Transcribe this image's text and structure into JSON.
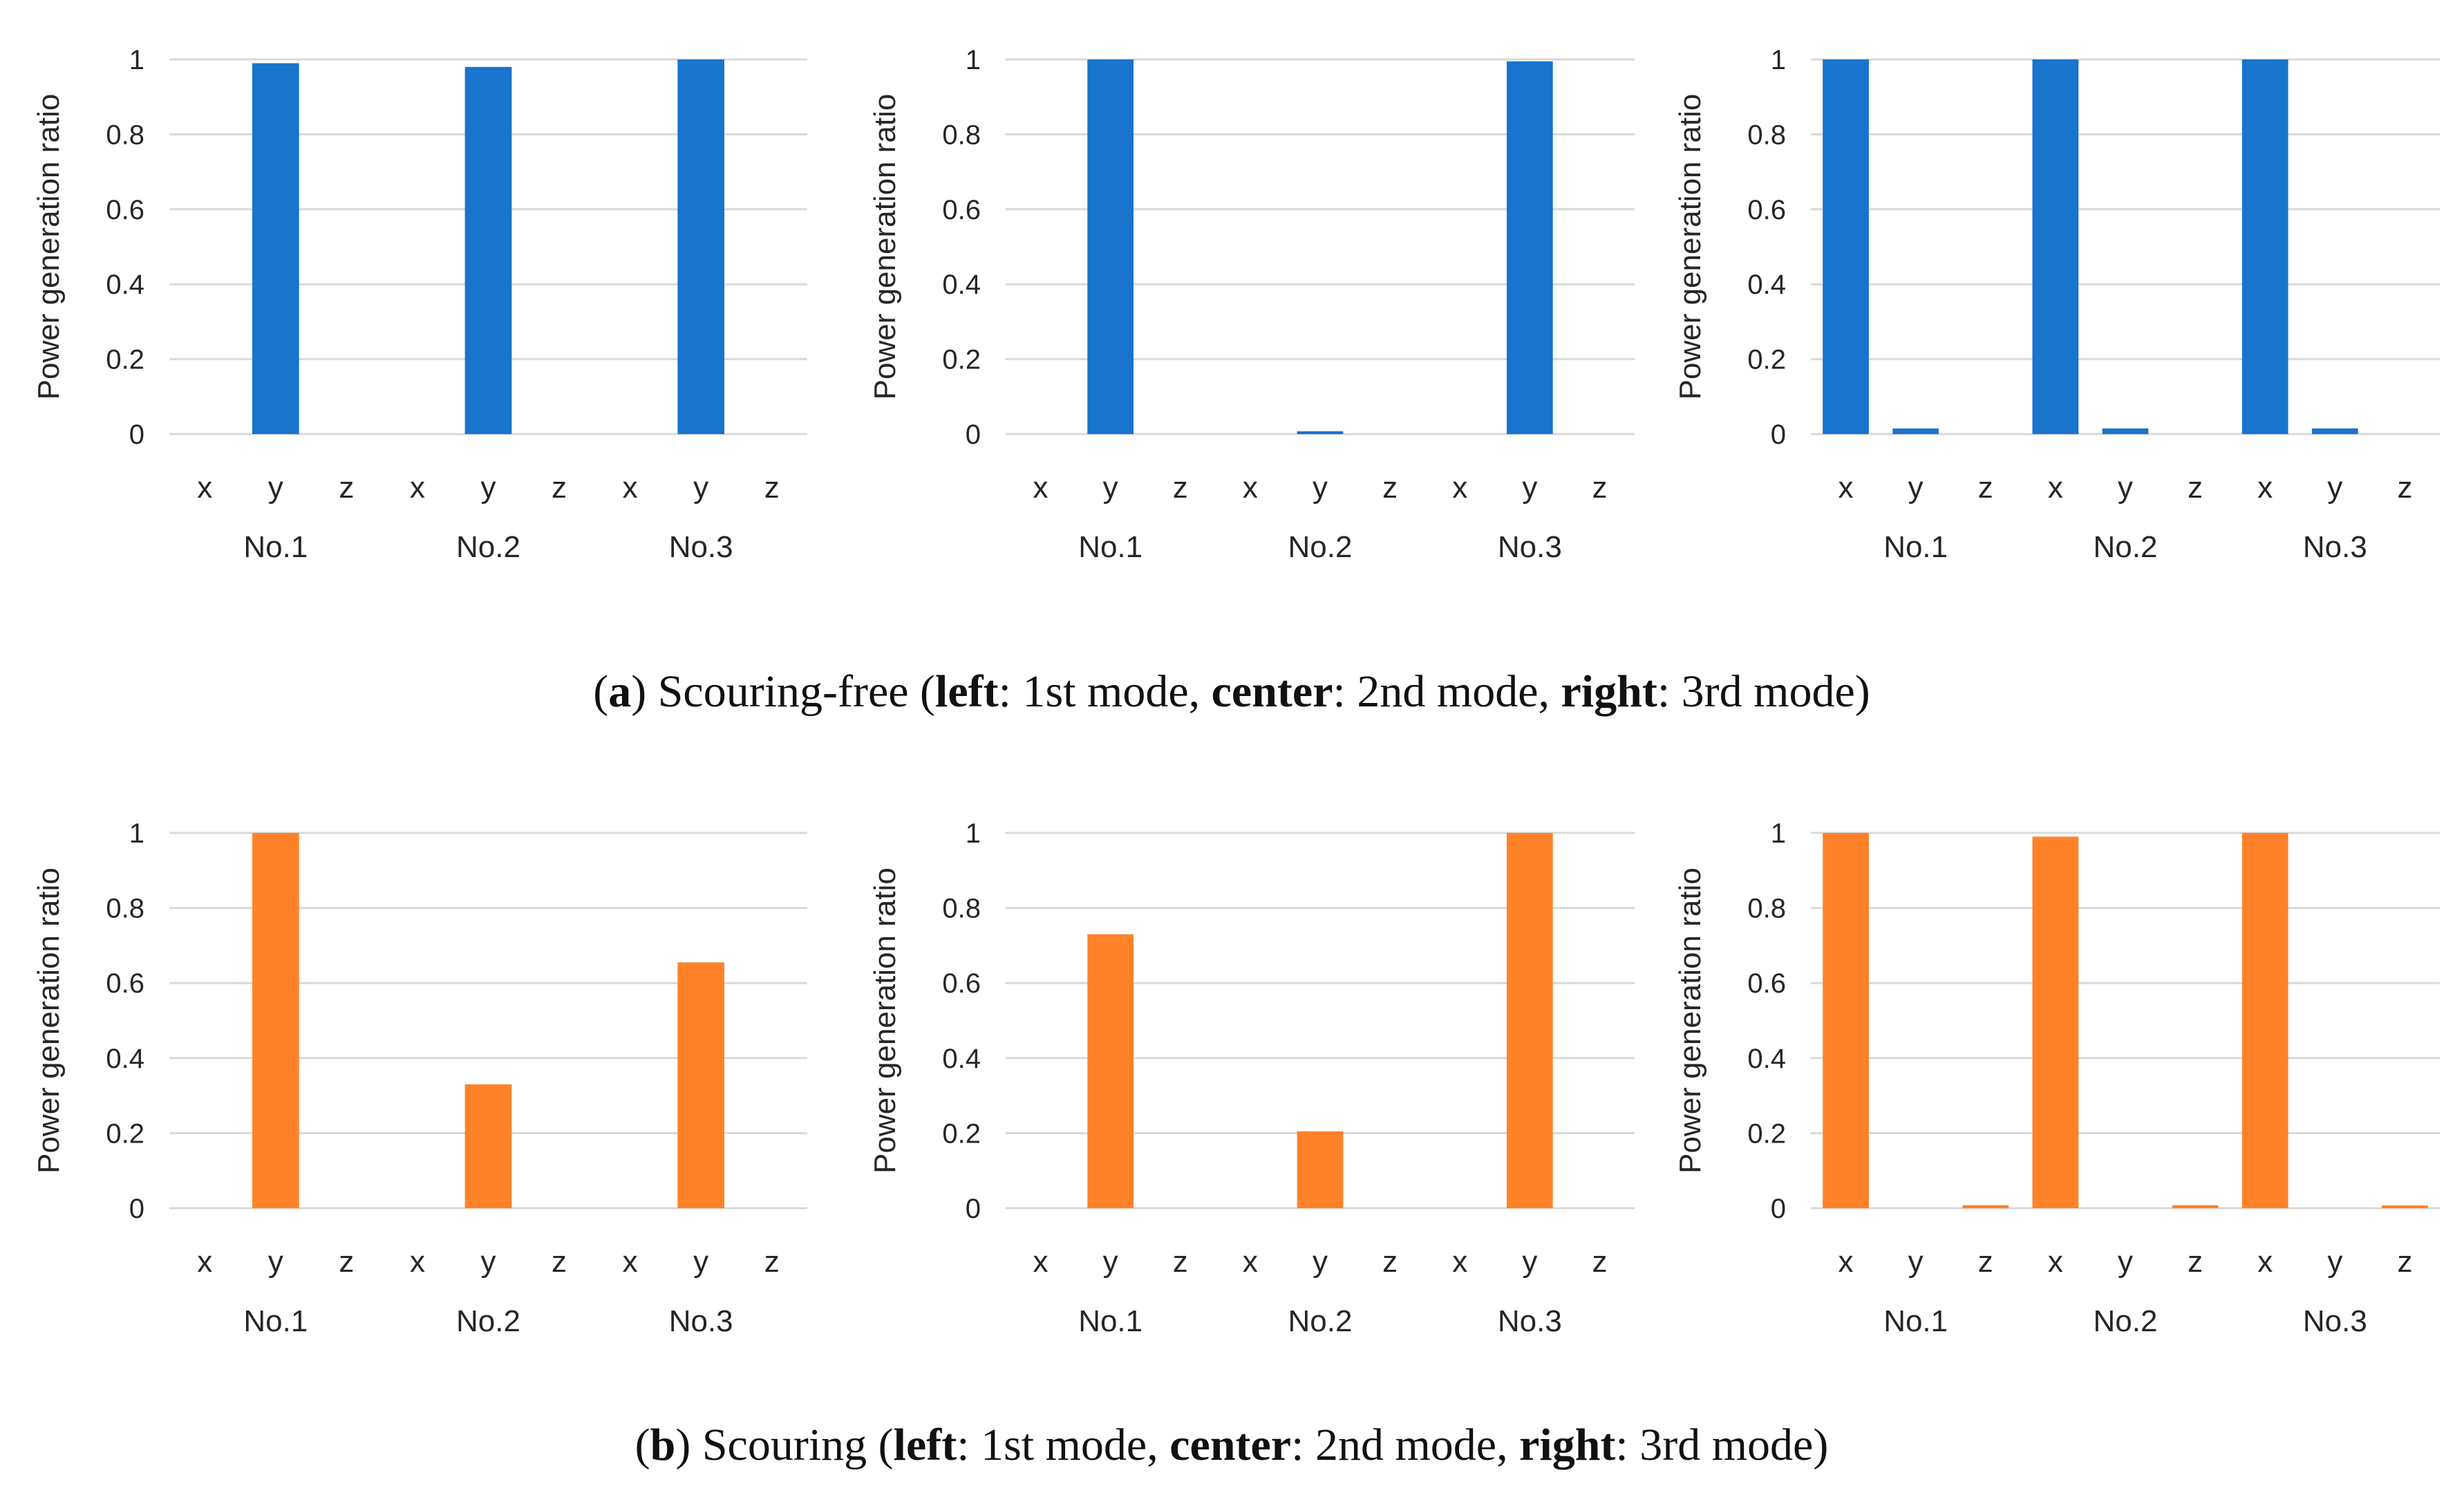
{
  "colors": {
    "scouring_free": "#1874cd",
    "scouring": "#ff8229",
    "grid": "#d9d9d9",
    "text": "#262626"
  },
  "captions": {
    "a": {
      "letter": "a",
      "after_letter": " Scouring-free (",
      "left_word": "left",
      "left_text": ": 1st mode, ",
      "center_word": "center",
      "center_text": ": 2nd mode, ",
      "right_word": "right",
      "right_text": ": 3rd mode)"
    },
    "b": {
      "letter": "b",
      "after_letter": " Scouring (",
      "left_word": "left",
      "left_text": ": 1st mode, ",
      "center_word": "center",
      "center_text": ": 2nd mode, ",
      "right_word": "right",
      "right_text": ": 3rd mode)"
    }
  },
  "chart_data": [
    {
      "id": "a-left",
      "group": "a",
      "type": "bar",
      "title": "",
      "ylabel": "Power generation ratio",
      "xlabel": "",
      "ylim": [
        0,
        1
      ],
      "yticks": [
        "0",
        "0.2",
        "0.4",
        "0.6",
        "0.8",
        "1"
      ],
      "categories": [
        "x",
        "y",
        "z",
        "x",
        "y",
        "z",
        "x",
        "y",
        "z"
      ],
      "groups": [
        "No.1",
        "No.2",
        "No.3"
      ],
      "values": [
        0,
        0.99,
        0,
        0,
        0.98,
        0,
        0,
        1.0,
        0
      ],
      "color": "#1874cd",
      "grid": true
    },
    {
      "id": "a-center",
      "group": "a",
      "type": "bar",
      "title": "",
      "ylabel": "Power generation ratio",
      "xlabel": "",
      "ylim": [
        0,
        1
      ],
      "yticks": [
        "0",
        "0.2",
        "0.4",
        "0.6",
        "0.8",
        "1"
      ],
      "categories": [
        "x",
        "y",
        "z",
        "x",
        "y",
        "z",
        "x",
        "y",
        "z"
      ],
      "groups": [
        "No.1",
        "No.2",
        "No.3"
      ],
      "values": [
        0,
        1.0,
        0,
        0,
        0.005,
        0,
        0,
        0.995,
        0
      ],
      "color": "#1874cd",
      "grid": true
    },
    {
      "id": "a-right",
      "group": "a",
      "type": "bar",
      "title": "",
      "ylabel": "Power generation ratio",
      "xlabel": "",
      "ylim": [
        0,
        1
      ],
      "yticks": [
        "0",
        "0.2",
        "0.4",
        "0.6",
        "0.8",
        "1"
      ],
      "categories": [
        "x",
        "y",
        "z",
        "x",
        "y",
        "z",
        "x",
        "y",
        "z"
      ],
      "groups": [
        "No.1",
        "No.2",
        "No.3"
      ],
      "values": [
        1.0,
        0.015,
        0,
        1.0,
        0.015,
        0,
        1.0,
        0.015,
        0
      ],
      "color": "#1874cd",
      "grid": true
    },
    {
      "id": "b-left",
      "group": "b",
      "type": "bar",
      "title": "",
      "ylabel": "Power generation ratio",
      "xlabel": "",
      "ylim": [
        0,
        1
      ],
      "yticks": [
        "0",
        "0.2",
        "0.4",
        "0.6",
        "0.8",
        "1"
      ],
      "categories": [
        "x",
        "y",
        "z",
        "x",
        "y",
        "z",
        "x",
        "y",
        "z"
      ],
      "groups": [
        "No.1",
        "No.2",
        "No.3"
      ],
      "values": [
        0,
        1.0,
        0,
        0,
        0.33,
        0,
        0,
        0.655,
        0
      ],
      "color": "#ff8229",
      "grid": true
    },
    {
      "id": "b-center",
      "group": "b",
      "type": "bar",
      "title": "",
      "ylabel": "Power generation ratio",
      "xlabel": "",
      "ylim": [
        0,
        1
      ],
      "yticks": [
        "0",
        "0.2",
        "0.4",
        "0.6",
        "0.8",
        "1"
      ],
      "categories": [
        "x",
        "y",
        "z",
        "x",
        "y",
        "z",
        "x",
        "y",
        "z"
      ],
      "groups": [
        "No.1",
        "No.2",
        "No.3"
      ],
      "values": [
        0,
        0.73,
        0,
        0,
        0.205,
        0,
        0,
        1.0,
        0
      ],
      "color": "#ff8229",
      "grid": true
    },
    {
      "id": "b-right",
      "group": "b",
      "type": "bar",
      "title": "",
      "ylabel": "Power generation ratio",
      "xlabel": "",
      "ylim": [
        0,
        1
      ],
      "yticks": [
        "0",
        "0.2",
        "0.4",
        "0.6",
        "0.8",
        "1"
      ],
      "categories": [
        "x",
        "y",
        "z",
        "x",
        "y",
        "z",
        "x",
        "y",
        "z"
      ],
      "groups": [
        "No.1",
        "No.2",
        "No.3"
      ],
      "values": [
        1.0,
        0,
        0.008,
        0.99,
        0,
        0.008,
        1.0,
        0,
        0.004
      ],
      "color": "#ff8229",
      "grid": true
    }
  ]
}
